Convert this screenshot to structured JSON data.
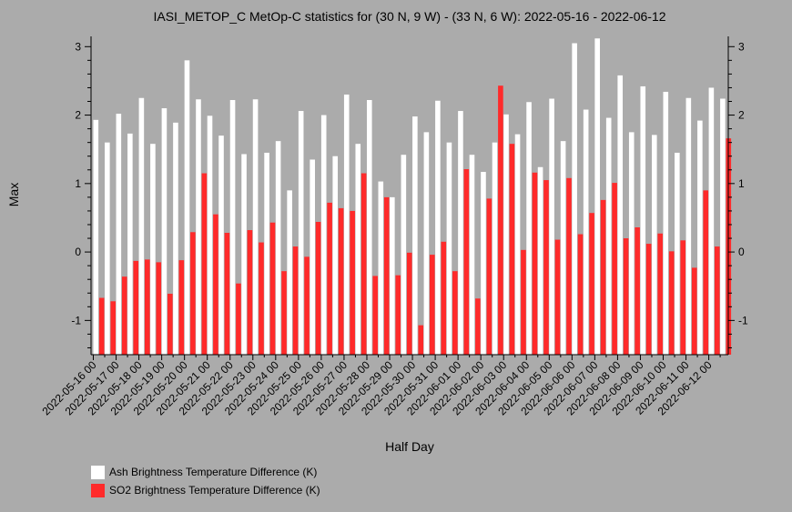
{
  "chart_data": {
    "type": "bar",
    "title": "IASI_METOP_C MetOp-C statistics for (30 N, 9 W) - (33 N, 6 W): 2022-05-16 - 2022-06-12",
    "xlabel": "Half Day",
    "ylabel": "Max",
    "ylim": [
      -1.5,
      3.15
    ],
    "yticks": [
      -1,
      0,
      1,
      2,
      3
    ],
    "grid": false,
    "legend_placement": "bottom-left",
    "x_tick_labels": [
      "2022-05-16 00",
      "2022-05-17 00",
      "2022-05-18 00",
      "2022-05-19 00",
      "2022-05-20 00",
      "2022-05-21 00",
      "2022-05-22 00",
      "2022-05-23 00",
      "2022-05-24 00",
      "2022-05-25 00",
      "2022-05-26 00",
      "2022-05-27 00",
      "2022-05-28 00",
      "2022-05-29 00",
      "2022-05-30 00",
      "2022-05-31 00",
      "2022-06-01 00",
      "2022-06-02 00",
      "2022-06-03 00",
      "2022-06-04 00",
      "2022-06-05 00",
      "2022-06-06 00",
      "2022-06-07 00",
      "2022-06-08 00",
      "2022-06-09 00",
      "2022-06-10 00",
      "2022-06-11 00",
      "2022-06-12 00"
    ],
    "series": [
      {
        "name": "Ash Brightness Temperature Difference (K)",
        "color": "#ffffff",
        "values": [
          1.93,
          1.6,
          2.02,
          1.73,
          2.25,
          1.58,
          2.1,
          1.89,
          2.8,
          2.23,
          1.99,
          1.7,
          2.22,
          1.43,
          2.23,
          1.45,
          1.62,
          0.9,
          2.06,
          1.35,
          2.0,
          1.4,
          2.3,
          1.58,
          2.22,
          1.03,
          0.8,
          1.42,
          1.98,
          1.75,
          2.21,
          1.6,
          2.06,
          1.42,
          1.17,
          1.6,
          2.01,
          1.72,
          2.19,
          1.24,
          2.24,
          1.62,
          3.05,
          2.08,
          3.12,
          1.96,
          2.58,
          1.75,
          2.42,
          1.71,
          2.34,
          1.45,
          2.25,
          1.92,
          2.4,
          2.24
        ]
      },
      {
        "name": "SO2 Brightness Temperature Difference (K)",
        "color": "#ff2a2a",
        "values": [
          -0.67,
          -0.72,
          -0.36,
          -0.13,
          -0.11,
          -0.15,
          -0.61,
          -0.12,
          0.29,
          1.15,
          0.55,
          0.28,
          -0.46,
          0.32,
          0.14,
          0.43,
          -0.28,
          0.08,
          -0.07,
          0.44,
          0.72,
          0.64,
          0.6,
          1.15,
          -0.35,
          0.8,
          -0.34,
          -0.01,
          -1.07,
          -0.04,
          0.15,
          -0.28,
          1.21,
          -0.68,
          0.78,
          2.43,
          1.58,
          0.03,
          1.16,
          1.05,
          0.18,
          1.08,
          0.26,
          0.57,
          0.76,
          1.01,
          0.2,
          0.36,
          0.12,
          0.27,
          0.01,
          0.17,
          -0.23,
          0.9,
          0.08,
          1.66
        ]
      }
    ]
  }
}
